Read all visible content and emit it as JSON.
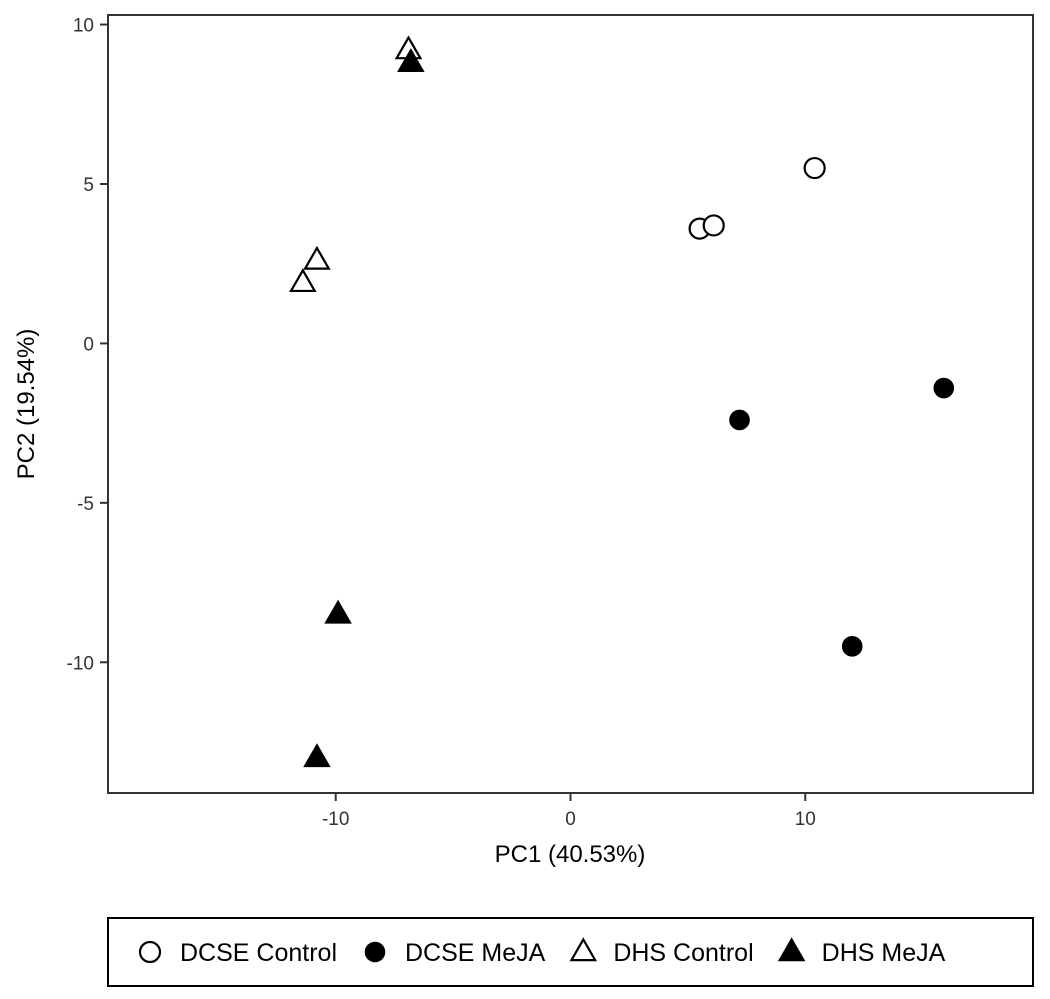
{
  "chart_data": {
    "type": "scatter",
    "xlabel": "PC1 (40.53%)",
    "ylabel": "PC2 (19.54%)",
    "xlim": [
      -19.7,
      19.7
    ],
    "ylim": [
      -14.1,
      10.3
    ],
    "x_ticks": [
      -10,
      0,
      10
    ],
    "x_tick_labels": [
      "-10",
      "0",
      "10"
    ],
    "y_ticks": [
      10,
      5,
      0,
      -5,
      -10
    ],
    "y_tick_labels": [
      "10",
      "5",
      "0",
      "-5",
      "-10"
    ],
    "grid": false,
    "legend_position": "bottom",
    "series": [
      {
        "name": "DCSE Control",
        "shape": "circle-open",
        "points": [
          [
            5.5,
            3.6
          ],
          [
            6.1,
            3.7
          ],
          [
            10.4,
            5.5
          ]
        ]
      },
      {
        "name": "DCSE MeJA",
        "shape": "circle-filled",
        "points": [
          [
            7.2,
            -2.4
          ],
          [
            15.9,
            -1.4
          ],
          [
            12.0,
            -9.5
          ]
        ]
      },
      {
        "name": "DHS Control",
        "shape": "triangle-open",
        "points": [
          [
            -6.9,
            9.2
          ],
          [
            -10.8,
            2.6
          ],
          [
            -11.4,
            1.9
          ]
        ]
      },
      {
        "name": "DHS MeJA",
        "shape": "triangle-filled",
        "points": [
          [
            -6.8,
            8.8
          ],
          [
            -9.9,
            -8.5
          ],
          [
            -10.8,
            -13.0
          ]
        ]
      }
    ]
  },
  "colors": {
    "marker": "#000000",
    "panel_border": "#333333",
    "background": "#ffffff"
  }
}
